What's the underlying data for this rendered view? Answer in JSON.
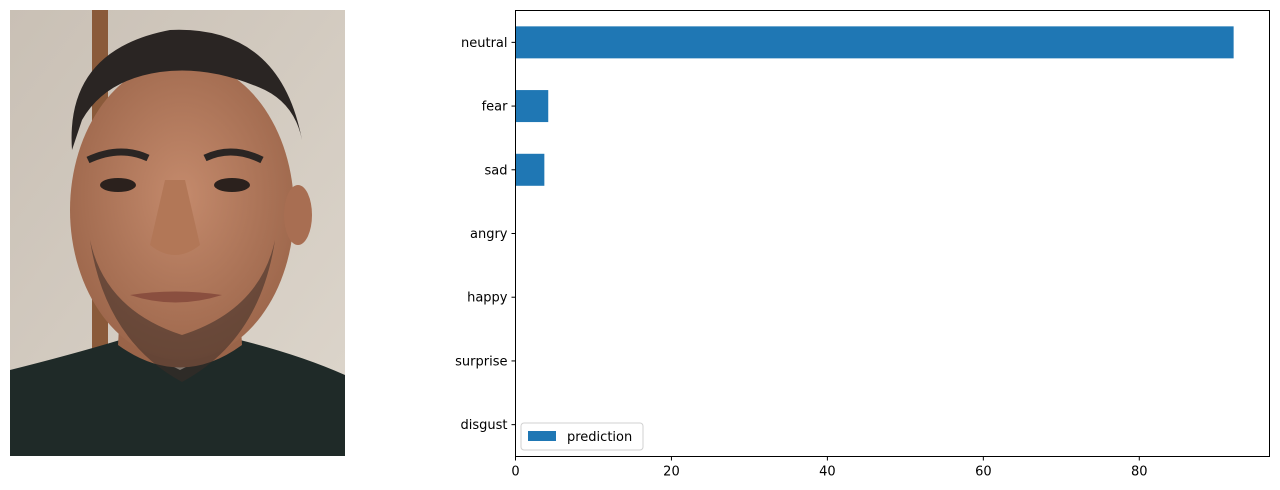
{
  "photo": {
    "subject": "face-photo",
    "colors": {
      "wall": "#c9c0b5",
      "wall_light": "#ddd6cc",
      "door_frame": "#8a5a3a",
      "skin": "#b97f63",
      "skin_shadow": "#9a6449",
      "hair": "#2a2523",
      "shirt": "#1f2a28"
    }
  },
  "chart_data": {
    "type": "bar",
    "orientation": "horizontal",
    "categories": [
      "neutral",
      "fear",
      "sad",
      "angry",
      "happy",
      "surprise",
      "disgust"
    ],
    "series": [
      {
        "name": "prediction",
        "values": [
          92.1,
          4.2,
          3.7,
          0.0,
          0.0,
          0.0,
          0.0
        ]
      }
    ],
    "xticks": [
      0,
      20,
      40,
      60,
      80
    ],
    "xlim": [
      0,
      96.7
    ],
    "xlabel": "",
    "ylabel": "",
    "title": "",
    "grid": false,
    "legend_location": "lower-left",
    "colors": {
      "bar": "#1f77b4",
      "axis": "#000000"
    }
  }
}
